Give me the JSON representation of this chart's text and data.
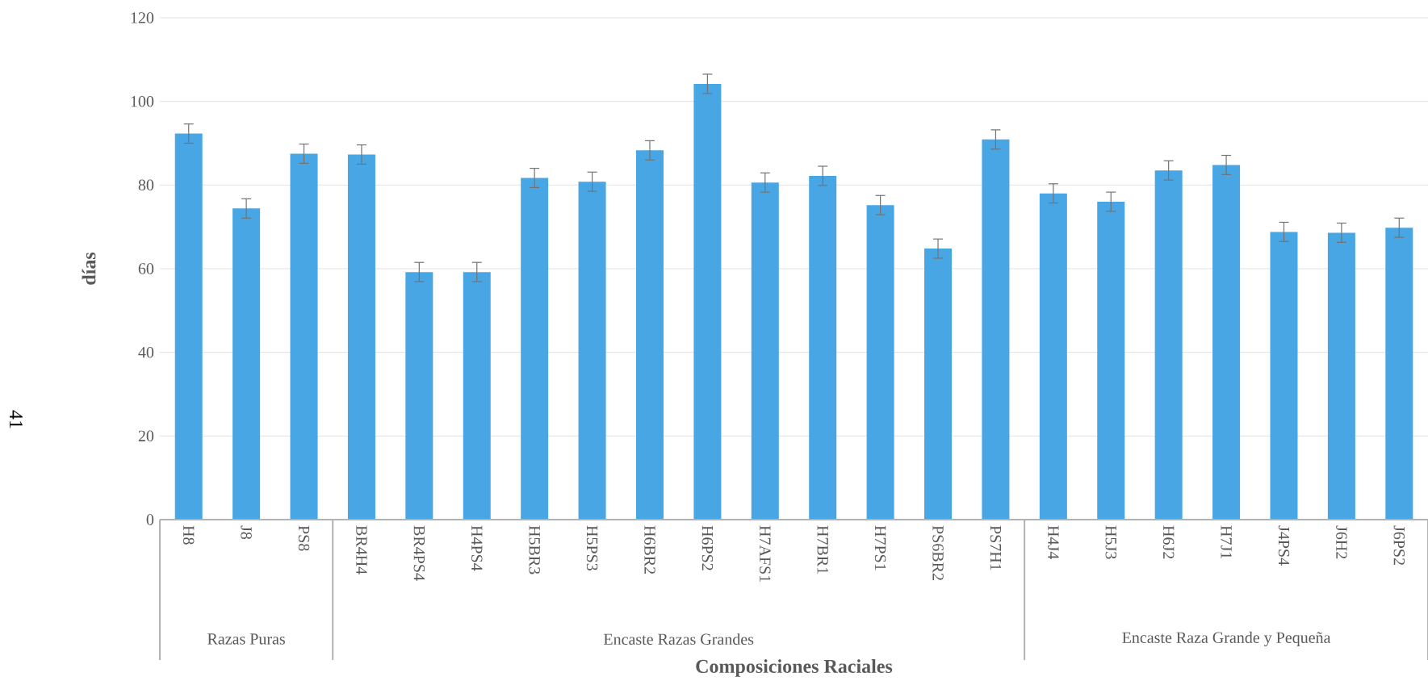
{
  "chart_data": {
    "type": "bar",
    "xlabel": "Composiciones Raciales",
    "ylabel": "días",
    "categories": [
      "H8",
      "J8",
      "PS8",
      "BR4H4",
      "BR4PS4",
      "H4PS4",
      "H5BR3",
      "H5PS3",
      "H6BR2",
      "H6PS2",
      "H7AFS1",
      "H7BR1",
      "H7PS1",
      "PS6BR2",
      "PS7H1",
      "H4J4",
      "H5J3",
      "H6J2",
      "H7J1",
      "J4PS4",
      "J6H2",
      "J6PS2"
    ],
    "values": [
      92.3,
      74.4,
      87.5,
      87.3,
      59.2,
      59.2,
      81.7,
      80.8,
      88.3,
      104.2,
      80.6,
      82.2,
      75.2,
      64.8,
      90.9,
      78.0,
      76.0,
      83.5,
      84.8,
      68.8,
      68.6,
      69.8
    ],
    "errors": [
      2.3,
      2.3,
      2.3,
      2.3,
      2.3,
      2.3,
      2.3,
      2.3,
      2.3,
      2.3,
      2.3,
      2.3,
      2.3,
      2.3,
      2.3,
      2.3,
      2.3,
      2.3,
      2.3,
      2.3,
      2.3,
      2.3
    ],
    "color": "#48a6e4",
    "ylim": [
      0,
      120
    ],
    "yticks": [
      0,
      20,
      40,
      60,
      80,
      100,
      120
    ],
    "grid": "y",
    "annotations": [
      "Razas Puras",
      "Encaste Razas Grandes",
      "Encaste Raza Grande y Pequeña",
      "41"
    ]
  }
}
